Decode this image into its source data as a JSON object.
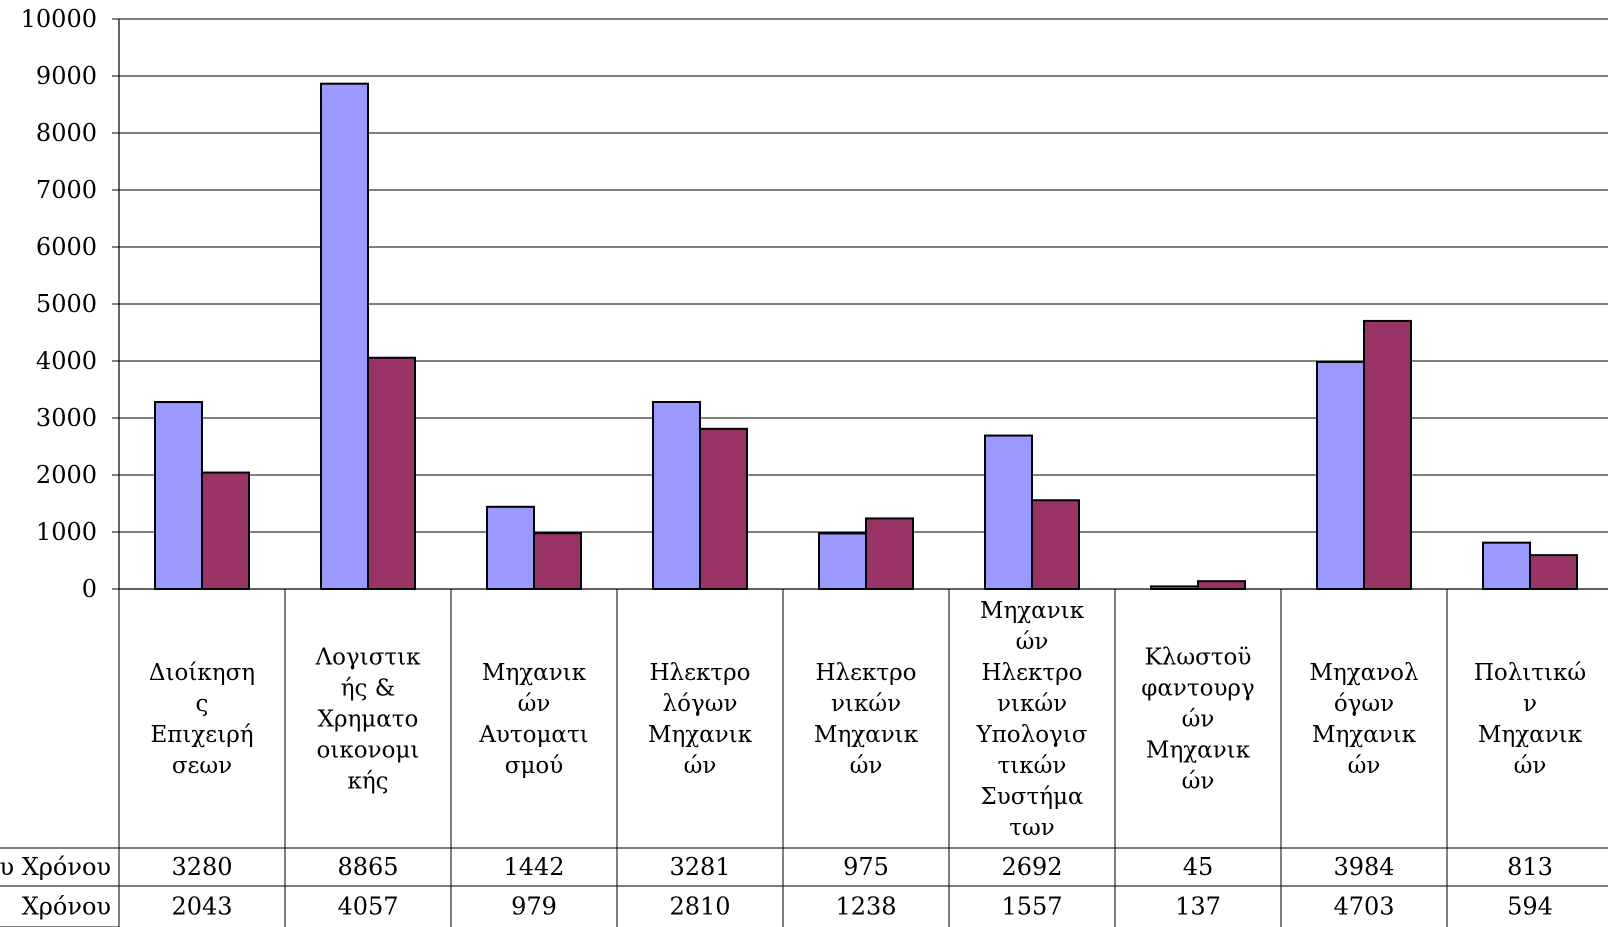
{
  "chart_data": {
    "type": "bar",
    "categories": [
      [
        "Διοίκηση",
        "ς",
        "Επιχειρή",
        "σεων"
      ],
      [
        "Λογιστικ",
        "ής &",
        "Χρηματο",
        "οικονομι",
        "κής"
      ],
      [
        "Μηχανικ",
        "ών",
        "Αυτοματι",
        "σμού"
      ],
      [
        "Ηλεκτρο",
        "λόγων",
        "Μηχανικ",
        "ών"
      ],
      [
        "Ηλεκτρο",
        "νικών",
        "Μηχανικ",
        "ών"
      ],
      [
        "Μηχανικ",
        "ών",
        "Ηλεκτρο",
        "νικών",
        "Υπολογισ",
        "τικών",
        "Συστήμα",
        "των"
      ],
      [
        "Κλωστοϋ",
        "φαντουργ",
        "ών",
        "Μηχανικ",
        "ών"
      ],
      [
        "Μηχανολ",
        "όγων",
        "Μηχανικ",
        "ών"
      ],
      [
        "Πολιτικώ",
        "ν",
        "Μηχανικ",
        "ών"
      ]
    ],
    "series": [
      {
        "name": "υ Χρόνου",
        "color": "#9999ff",
        "values": [
          3280,
          8865,
          1442,
          3281,
          975,
          2692,
          45,
          3984,
          813
        ]
      },
      {
        "name": "Χρόνου",
        "color": "#993366",
        "values": [
          2043,
          4057,
          979,
          2810,
          1238,
          1557,
          137,
          4703,
          594
        ]
      }
    ],
    "yticks": [
      "0",
      "1000",
      "2000",
      "3000",
      "4000",
      "5000",
      "6000",
      "7000",
      "8000",
      "9000",
      "10000"
    ],
    "ylim": [
      0,
      10000
    ],
    "grid": true,
    "legend": "data-table-below",
    "title": "",
    "xlabel": "",
    "ylabel": ""
  }
}
